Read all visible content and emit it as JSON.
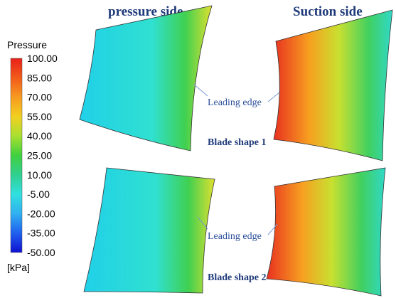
{
  "headers": [
    "pressure side",
    "Suction side"
  ],
  "legend": {
    "title": "Pressure",
    "ticks": [
      "100.00",
      "85.00",
      "70.00",
      "55.00",
      "40.00",
      "25.00",
      "10.00",
      "-5.00",
      "-20.00",
      "-35.00",
      "-50.00"
    ],
    "unit": "[kPa]"
  },
  "annotations": [
    "Leading edge",
    "Leading edge"
  ],
  "rows": [
    "Blade shape 1",
    "Blade shape 2"
  ]
}
